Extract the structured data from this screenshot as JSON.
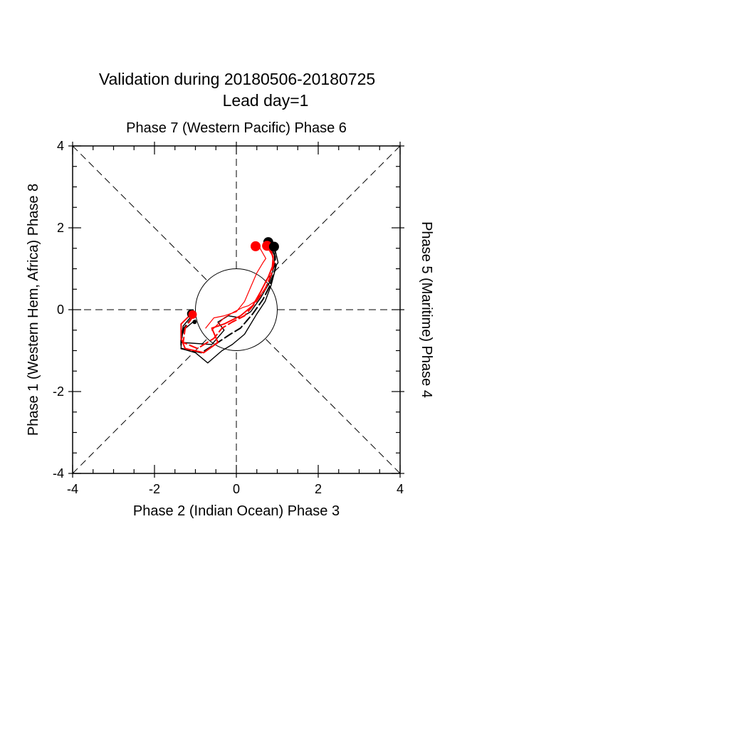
{
  "chart_data": {
    "type": "line",
    "title": "Validation during 20180506-20180725",
    "subtitle": "Lead day=1",
    "top_label": "Phase 7 (Western Pacific) Phase 6",
    "xlabel": "Phase 2 (Indian Ocean) Phase 3",
    "ylabel": "Phase 1 (Western Hem, Africa) Phase 8",
    "right_label": "Phase 5 (Maritime) Phase 4",
    "xlim": [
      -4,
      4
    ],
    "ylim": [
      -4,
      4
    ],
    "x_ticks": [
      "-4",
      "-2",
      "0",
      "2",
      "4"
    ],
    "y_ticks": [
      "-4",
      "-2",
      "0",
      "2",
      "4"
    ],
    "unit_circle_radius": 1,
    "colors": {
      "observed": "#000000",
      "forecast": "#ff0000"
    },
    "series": [
      {
        "color": "#000000",
        "dash": false,
        "width": 1.4,
        "x": [
          -1.05,
          -1.3,
          -1.35,
          -1.35,
          -1.0,
          -0.7,
          -0.35,
          -0.1,
          0.2,
          0.5,
          0.7,
          0.85,
          0.98,
          1.02,
          0.95,
          0.9
        ],
        "y": [
          -0.1,
          -0.4,
          -0.7,
          -0.95,
          -1.05,
          -1.3,
          -1.0,
          -0.85,
          -0.6,
          -0.1,
          0.2,
          0.6,
          1.1,
          1.15,
          1.45,
          1.55
        ]
      },
      {
        "color": "#000000",
        "dash": true,
        "width": 2.0,
        "x": [
          -1.05,
          -1.28,
          -1.35,
          -1.35,
          -0.85,
          -0.45,
          -0.15,
          0.1,
          0.4,
          0.65,
          0.8,
          0.95,
          0.95,
          0.8
        ],
        "y": [
          -0.15,
          -0.45,
          -0.75,
          -0.95,
          -1.05,
          -0.8,
          -0.6,
          -0.45,
          -0.1,
          0.25,
          0.55,
          1.0,
          1.3,
          1.6
        ]
      },
      {
        "color": "#000000",
        "dash": false,
        "width": 1.4,
        "x": [
          -1.0,
          -1.3,
          -1.35,
          -0.6,
          -0.3,
          -0.45,
          -0.2,
          0.1,
          0.35,
          0.6,
          0.8,
          0.92,
          0.95
        ],
        "y": [
          -0.25,
          -0.5,
          -0.8,
          -0.85,
          -0.5,
          -0.3,
          -0.15,
          -0.2,
          -0.05,
          0.3,
          0.65,
          1.05,
          1.55
        ]
      },
      {
        "color": "#ff0000",
        "dash": false,
        "width": 2.0,
        "x": [
          -1.1,
          -1.35,
          -1.35,
          -1.25,
          -0.8,
          -0.45,
          -0.6,
          -0.3,
          0.1,
          0.4,
          0.6,
          0.78,
          0.88,
          0.9,
          0.75
        ],
        "y": [
          -0.1,
          -0.35,
          -0.7,
          -0.95,
          -1.05,
          -0.8,
          -0.45,
          -0.35,
          -0.15,
          0.1,
          0.45,
          0.8,
          1.05,
          1.3,
          1.55
        ]
      },
      {
        "color": "#ff0000",
        "dash": true,
        "width": 2.0,
        "x": [
          -1.05,
          -1.25,
          -1.3,
          -0.95,
          -0.55,
          -0.35,
          -0.1,
          0.2,
          0.45,
          0.7,
          0.85,
          0.92,
          0.82
        ],
        "y": [
          -0.15,
          -0.45,
          -0.8,
          -0.95,
          -0.7,
          -0.45,
          -0.3,
          -0.15,
          0.15,
          0.5,
          0.85,
          1.15,
          1.58
        ]
      },
      {
        "color": "#ff0000",
        "dash": false,
        "width": 1.2,
        "x": [
          -0.75,
          -0.55,
          -0.3,
          0.0,
          0.2,
          0.35,
          0.5,
          0.65,
          0.72,
          0.55
        ],
        "y": [
          -0.45,
          -0.2,
          -0.15,
          -0.05,
          0.2,
          0.55,
          0.9,
          1.15,
          1.25,
          1.55
        ]
      },
      {
        "color": "#ff0000",
        "dash": false,
        "width": 1.2,
        "x": [
          -0.6,
          -0.3,
          -0.05,
          0.15,
          0.3,
          0.45,
          0.62,
          0.75
        ],
        "y": [
          -0.5,
          -0.2,
          -0.05,
          0.05,
          0.1,
          0.2,
          0.4,
          0.6
        ]
      }
    ],
    "start_points": [
      {
        "color": "#000000",
        "x": -1.1,
        "y": -0.1,
        "r": 6
      },
      {
        "color": "#000000",
        "x": -1.02,
        "y": -0.3,
        "r": 3
      },
      {
        "color": "#ff0000",
        "x": -1.07,
        "y": -0.12,
        "r": 6
      }
    ],
    "end_points": [
      {
        "color": "#ff0000",
        "x": 0.47,
        "y": 1.55,
        "r": 7
      },
      {
        "color": "#000000",
        "x": 0.78,
        "y": 1.65,
        "r": 7
      },
      {
        "color": "#ff0000",
        "x": 0.75,
        "y": 1.56,
        "r": 7
      },
      {
        "color": "#000000",
        "x": 0.92,
        "y": 1.54,
        "r": 7
      }
    ]
  }
}
